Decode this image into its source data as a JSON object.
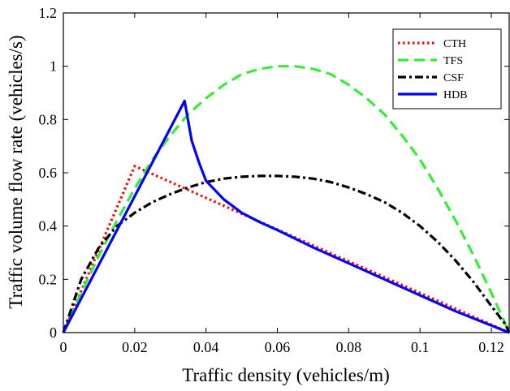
{
  "chart_data": {
    "type": "line",
    "title": "",
    "xlabel": "Traffic density (vehicles/m)",
    "ylabel": "Traffic volume flow rate (vehicles/s)",
    "xlim": [
      0,
      0.125
    ],
    "ylim": [
      0,
      1.2
    ],
    "xticks": [
      0,
      0.02,
      0.04,
      0.06,
      0.08,
      0.1,
      0.12
    ],
    "xtick_labels": [
      "0",
      "0.02",
      "0.04",
      "0.06",
      "0.08",
      "0.1",
      "0.12"
    ],
    "yticks": [
      0,
      0.2,
      0.4,
      0.6,
      0.8,
      1,
      1.2
    ],
    "ytick_labels": [
      "0",
      "0.2",
      "0.4",
      "0.6",
      "0.8",
      "1",
      "1.2"
    ],
    "grid": false,
    "legend_position": "top-right",
    "series": [
      {
        "name": "CTH",
        "color": "#ff0000",
        "dash": "dotted",
        "x": [
          0,
          0.02,
          0.125
        ],
        "y": [
          0,
          0.625,
          0
        ]
      },
      {
        "name": "TFS",
        "color": "#33ee33",
        "dash": "dashed",
        "x": [
          0,
          0.005,
          0.01,
          0.015,
          0.02,
          0.025,
          0.03,
          0.035,
          0.04,
          0.045,
          0.05,
          0.055,
          0.06,
          0.0625,
          0.065,
          0.07,
          0.075,
          0.08,
          0.085,
          0.09,
          0.095,
          0.1,
          0.105,
          0.11,
          0.115,
          0.12,
          0.125
        ],
        "y": [
          0,
          0.15,
          0.29,
          0.42,
          0.54,
          0.65,
          0.74,
          0.82,
          0.88,
          0.93,
          0.97,
          0.99,
          1.0,
          1.0,
          1.0,
          0.99,
          0.97,
          0.93,
          0.88,
          0.82,
          0.74,
          0.65,
          0.54,
          0.42,
          0.29,
          0.15,
          0
        ]
      },
      {
        "name": "CSF",
        "color": "#000000",
        "dash": "dashdot",
        "x": [
          0,
          0.005,
          0.01,
          0.015,
          0.02,
          0.025,
          0.03,
          0.035,
          0.04,
          0.045,
          0.05,
          0.055,
          0.06,
          0.065,
          0.07,
          0.075,
          0.08,
          0.085,
          0.09,
          0.095,
          0.1,
          0.105,
          0.11,
          0.115,
          0.12,
          0.122,
          0.124,
          0.125
        ],
        "y": [
          0,
          0.2,
          0.32,
          0.4,
          0.45,
          0.49,
          0.52,
          0.545,
          0.565,
          0.578,
          0.585,
          0.588,
          0.588,
          0.585,
          0.578,
          0.565,
          0.545,
          0.52,
          0.49,
          0.45,
          0.4,
          0.34,
          0.27,
          0.19,
          0.1,
          0.065,
          0.03,
          0
        ]
      },
      {
        "name": "HDB",
        "color": "#0000ff",
        "dash": "solid",
        "x": [
          0,
          0.034,
          0.036,
          0.038,
          0.04,
          0.045,
          0.05,
          0.055,
          0.06,
          0.07,
          0.08,
          0.09,
          0.1,
          0.11,
          0.125
        ],
        "y": [
          0,
          0.87,
          0.72,
          0.64,
          0.57,
          0.5,
          0.45,
          0.415,
          0.385,
          0.32,
          0.26,
          0.2,
          0.14,
          0.08,
          0
        ]
      }
    ]
  }
}
